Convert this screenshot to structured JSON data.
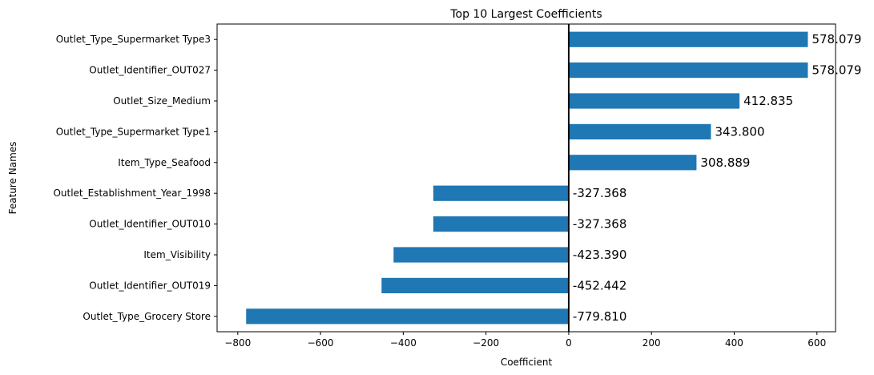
{
  "chart_data": {
    "type": "bar",
    "orientation": "horizontal",
    "title": "Top 10 Largest Coefficients",
    "xlabel": "Coefficient",
    "ylabel": "Feature Names",
    "xlim": [
      -850,
      645
    ],
    "xticks": [
      -800,
      -600,
      -400,
      -200,
      0,
      200,
      400,
      600
    ],
    "xtick_labels": [
      "−800",
      "−600",
      "−400",
      "−200",
      "0",
      "200",
      "400",
      "600"
    ],
    "grid": false,
    "color": "#1f77b4",
    "categories": [
      "Outlet_Type_Supermarket Type3",
      "Outlet_Identifier_OUT027",
      "Outlet_Size_Medium",
      "Outlet_Type_Supermarket Type1",
      "Item_Type_Seafood",
      "Outlet_Establishment_Year_1998",
      "Outlet_Identifier_OUT010",
      "Item_Visibility",
      "Outlet_Identifier_OUT019",
      "Outlet_Type_Grocery Store"
    ],
    "values": [
      578.079,
      578.079,
      412.835,
      343.8,
      308.889,
      -327.368,
      -327.368,
      -423.39,
      -452.442,
      -779.81
    ],
    "value_labels": [
      "578.079",
      "578.079",
      "412.835",
      "343.800",
      "308.889",
      "-327.368",
      "-327.368",
      "-423.390",
      "-452.442",
      "-779.810"
    ]
  }
}
